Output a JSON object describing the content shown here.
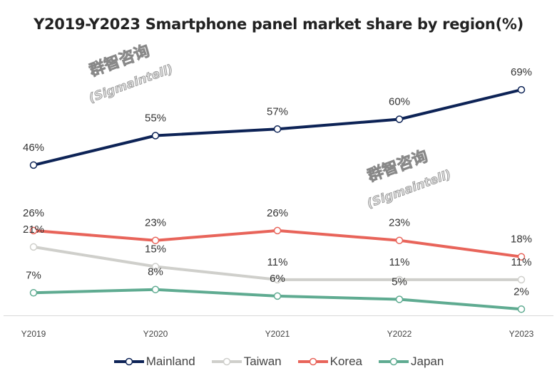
{
  "chart_data": {
    "type": "line",
    "title": "Y2019-Y2023 Smartphone panel market share by region(%)",
    "categories": [
      "Y2019",
      "Y2020",
      "Y2021",
      "Y2022",
      "Y2023"
    ],
    "series": [
      {
        "name": "Mainland",
        "color": "#0d2356",
        "values": [
          46,
          55,
          57,
          60,
          69
        ],
        "labels": [
          "46%",
          "55%",
          "57%",
          "60%",
          "69%"
        ]
      },
      {
        "name": "Taiwan",
        "color": "#cfcfcb",
        "values": [
          21,
          15,
          11,
          11,
          11
        ],
        "labels": [
          "21%",
          "15%",
          "11%",
          "11%",
          "11%"
        ]
      },
      {
        "name": "Korea",
        "color": "#e8645a",
        "values": [
          26,
          23,
          26,
          23,
          18
        ],
        "labels": [
          "26%",
          "23%",
          "26%",
          "23%",
          "18%"
        ]
      },
      {
        "name": "Japan",
        "color": "#5fab91",
        "values": [
          7,
          8,
          6,
          5,
          2
        ],
        "labels": [
          "7%",
          "8%",
          "6%",
          "5%",
          "2%"
        ]
      }
    ],
    "xlabel": "",
    "ylabel": "",
    "ylim": [
      0,
      69
    ],
    "grid": false,
    "legend": "bottom",
    "marker": "hollow-circle"
  },
  "watermark": {
    "cn": "群智咨询",
    "en": "(Sigmaintell)"
  }
}
